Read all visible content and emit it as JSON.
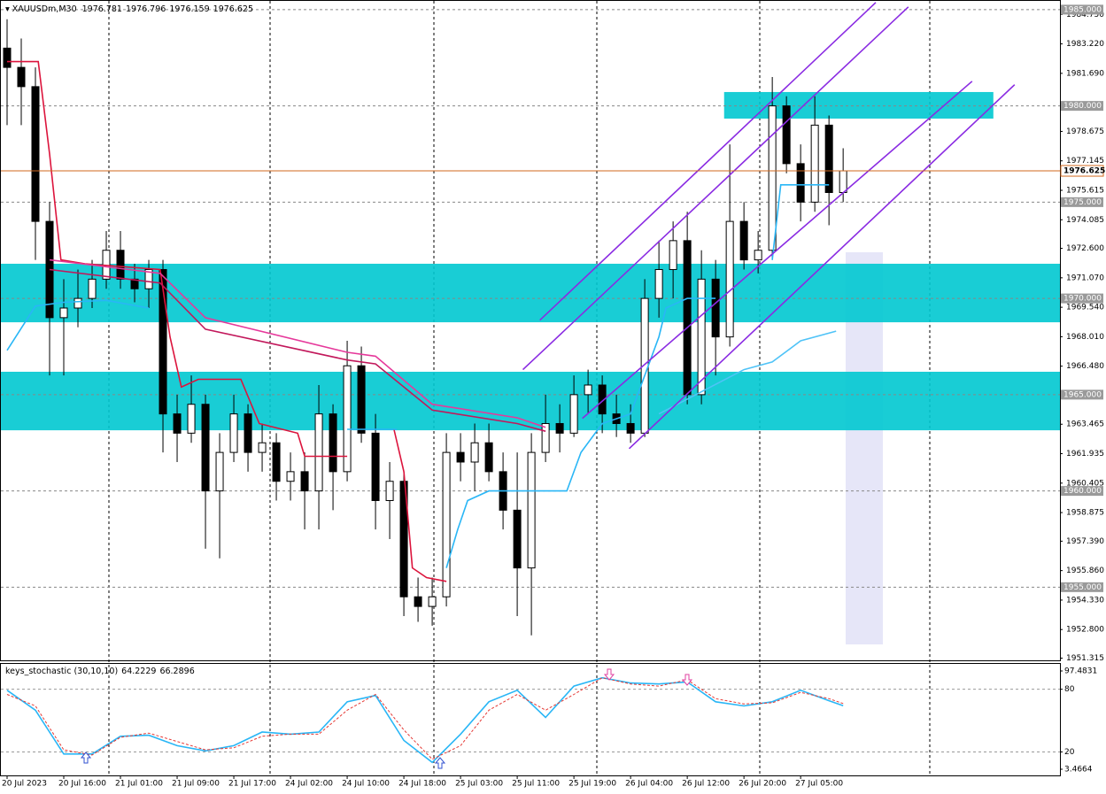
{
  "chart_data": [
    {
      "type": "candlestick",
      "title": "XAUUSDm,M30",
      "ohlc_header": [
        1976.781,
        1976.796,
        1976.159,
        1976.625
      ],
      "open": [
        1983,
        1982,
        1981,
        1974,
        1969,
        1969.5,
        1970,
        1971,
        1972.5,
        1971,
        1970.5,
        1971.5,
        1964,
        1963,
        1964.5,
        1960,
        1962,
        1964,
        1962,
        1962.5,
        1960.5,
        1961,
        1960,
        1964,
        1961,
        1966.5,
        1963,
        1959.5,
        1960.5,
        1954.5,
        1954,
        1954.5,
        1962,
        1961.5,
        1962.5,
        1961,
        1959,
        1956,
        1962,
        1963.5,
        1963,
        1965,
        1965.5,
        1964,
        1963.5,
        1963,
        1970,
        1971.5,
        1973,
        1965,
        1971,
        1968,
        1974,
        1972,
        1972.5,
        1980,
        1977,
        1975,
        1979,
        1975.5
      ],
      "high": [
        1984.5,
        1983.5,
        1982,
        1975,
        1971,
        1971.5,
        1972,
        1973.5,
        1973.5,
        1971.8,
        1972,
        1972,
        1965,
        1966,
        1965,
        1963,
        1965,
        1964.5,
        1963.5,
        1963,
        1962,
        1962,
        1965.5,
        1964.5,
        1967.8,
        1967.5,
        1964,
        1961.5,
        1961,
        1955.5,
        1955.5,
        1963,
        1963,
        1963.5,
        1963.5,
        1962,
        1962,
        1963,
        1965,
        1964.5,
        1966,
        1966.3,
        1966,
        1965,
        1964.5,
        1971,
        1973,
        1974,
        1974.5,
        1972.5,
        1972,
        1978,
        1975,
        1973.5,
        1981.5,
        1980.5,
        1978,
        1980.5,
        1979.5,
        1977.8
      ],
      "low": [
        1979,
        1979,
        1972,
        1966,
        1966,
        1968.5,
        1969.5,
        1970.5,
        1970.5,
        1969.8,
        1969.5,
        1962,
        1961.5,
        1962.5,
        1957,
        1956.5,
        1961.5,
        1961,
        1961,
        1959.5,
        1959.5,
        1958,
        1958,
        1959,
        1960.5,
        1962.5,
        1958,
        1957.5,
        1953.5,
        1953.2,
        1953,
        1954,
        1960.5,
        1960,
        1960.5,
        1958,
        1953.5,
        1952.5,
        1961.5,
        1962,
        1962.8,
        1964,
        1963,
        1962.8,
        1962.5,
        1962.8,
        1969,
        1970,
        1964.5,
        1964.5,
        1966,
        1967.5,
        1971.5,
        1971.3,
        1972,
        1976.5,
        1974,
        1974.5,
        1973.8,
        1975
      ],
      "close": [
        1982,
        1981,
        1974,
        1969,
        1969.5,
        1970,
        1971,
        1972.5,
        1971,
        1970.5,
        1971.5,
        1964,
        1963,
        1964.5,
        1960,
        1962,
        1964,
        1962,
        1962.5,
        1960.5,
        1961,
        1960,
        1964,
        1961,
        1966.5,
        1963,
        1959.5,
        1960.5,
        1954.5,
        1954,
        1954.5,
        1962,
        1961.5,
        1962.5,
        1961,
        1959,
        1956,
        1962,
        1963.5,
        1963,
        1965,
        1965.5,
        1964,
        1963.5,
        1963,
        1970,
        1971.5,
        1973,
        1965,
        1971,
        1968,
        1974,
        1972,
        1972.5,
        1980,
        1977,
        1975,
        1979,
        1975.5,
        1976.625
      ],
      "xlim": [
        -0.5,
        74.3
      ],
      "xticks": [
        {
          "value": 0,
          "label": "20 Jul 2023"
        },
        {
          "value": 4,
          "label": "20 Jul 16:00"
        },
        {
          "value": 8,
          "label": "21 Jul 01:00"
        },
        {
          "value": 12,
          "label": "21 Jul 09:00"
        },
        {
          "value": 16,
          "label": "21 Jul 17:00"
        },
        {
          "value": 20,
          "label": "24 Jul 02:00"
        },
        {
          "value": 24,
          "label": "24 Jul 10:00"
        },
        {
          "value": 28,
          "label": "24 Jul 18:00"
        },
        {
          "value": 32,
          "label": "25 Jul 03:00"
        },
        {
          "value": 36,
          "label": "25 Jul 11:00"
        },
        {
          "value": 40,
          "label": "25 Jul 19:00"
        },
        {
          "value": 44,
          "label": "26 Jul 04:00"
        },
        {
          "value": 48,
          "label": "26 Jul 12:00"
        },
        {
          "value": 52,
          "label": "26 Jul 20:00"
        },
        {
          "value": 56,
          "label": "27 Jul 05:00"
        }
      ],
      "ylim": [
        1951.2,
        1985.5
      ],
      "yticks": [
        {
          "value": 1984.75,
          "label": "1984.750"
        },
        {
          "value": 1983.22,
          "label": "1983.220"
        },
        {
          "value": 1981.69,
          "label": "1981.690"
        },
        {
          "value": 1978.675,
          "label": "1978.675"
        },
        {
          "value": 1977.145,
          "label": "1977.145"
        },
        {
          "value": 1975.615,
          "label": "1975.615"
        },
        {
          "value": 1974.085,
          "label": "1974.085"
        },
        {
          "value": 1972.6,
          "label": "1972.600"
        },
        {
          "value": 1971.07,
          "label": "1971.070"
        },
        {
          "value": 1969.54,
          "label": "1969.540"
        },
        {
          "value": 1968.01,
          "label": "1968.010"
        },
        {
          "value": 1966.48,
          "label": "1966.480"
        },
        {
          "value": 1963.465,
          "label": "1963.465"
        },
        {
          "value": 1961.935,
          "label": "1961.935"
        },
        {
          "value": 1960.405,
          "label": "1960.405"
        },
        {
          "value": 1958.875,
          "label": "1958.875"
        },
        {
          "value": 1957.39,
          "label": "1957.390"
        },
        {
          "value": 1955.86,
          "label": "1955.860"
        },
        {
          "value": 1954.33,
          "label": "1954.330"
        },
        {
          "value": 1952.8,
          "label": "1952.800"
        },
        {
          "value": 1951.315,
          "label": "1951.315"
        }
      ],
      "price_levels": [
        {
          "value": 1985,
          "label": "1985.000"
        },
        {
          "value": 1980,
          "label": "1980.000"
        },
        {
          "value": 1975,
          "label": "1975.000"
        },
        {
          "value": 1970,
          "label": "1970.000"
        },
        {
          "value": 1965,
          "label": "1965.000"
        },
        {
          "value": 1960,
          "label": "1960.000"
        },
        {
          "value": 1955,
          "label": "1955.000"
        }
      ],
      "current_price": 1976.625,
      "zone_color": "#00c8d0",
      "zones": [
        [
          1968.76,
          1971.8
        ],
        [
          1963.15,
          1966.19
        ]
      ],
      "box": {
        "x": [
          50.6,
          69.6
        ],
        "range": [
          1979.34,
          1980.72
        ]
      },
      "series": [
        {
          "color": "#dc143c",
          "x": [
            0,
            2.2,
            3,
            3.8,
            5.5,
            10.8,
            11.5,
            12.3,
            13.5,
            16.5,
            17.8,
            20.5,
            21,
            24,
            null,
            27.3,
            28,
            28.6,
            29.6,
            31
          ],
          "values": [
            1982.3,
            1982.3,
            1977.5,
            1972,
            1971.8,
            1971.5,
            1968,
            1965.4,
            1965.8,
            1965.8,
            1963.5,
            1963,
            1961.8,
            1961.8,
            null,
            1963.2,
            1961,
            1956,
            1955.5,
            1955.3
          ]
        },
        {
          "color": "#29b6f6",
          "x": [
            0,
            2,
            4,
            7,
            10,
            null,
            24,
            27.5,
            null,
            31,
            31.8,
            32.5,
            34,
            39.5,
            40.5,
            42,
            44,
            46,
            46.5,
            48,
            50,
            null,
            54,
            54.6,
            55,
            58
          ],
          "values": [
            1967.3,
            1969.6,
            1969.8,
            1969.9,
            1969.5,
            null,
            1963.2,
            1963.2,
            null,
            1956,
            1958,
            1959.5,
            1960,
            1960,
            1962,
            1963.5,
            1964,
            1968,
            1969.5,
            1970,
            1970,
            null,
            1972,
            1975.9,
            1975.9,
            1975.9
          ]
        },
        {
          "color": "#e6399b",
          "x": [
            3,
            10.8,
            14,
            24,
            26,
            30,
            36,
            38
          ],
          "values": [
            1972,
            1971.3,
            1969,
            1967.2,
            1967,
            1964.5,
            1963.8,
            1963.3
          ]
        },
        {
          "color": "#c2185b",
          "x": [
            3,
            10.8,
            14,
            24,
            26,
            30,
            36,
            38
          ],
          "values": [
            1971.5,
            1970.8,
            1968.4,
            1966.8,
            1966.6,
            1964.2,
            1963.5,
            1963.1
          ]
        },
        {
          "color": "#4fc3f7",
          "x": [
            46,
            52,
            54,
            56,
            58.5
          ],
          "values": [
            1964,
            1966.3,
            1966.7,
            1967.8,
            1968.3
          ]
        },
        {
          "color": "#8a2be2",
          "x": [
            37.6,
            61.3
          ],
          "values": [
            1968.87,
            1985.37
          ]
        },
        {
          "color": "#8a2be2",
          "x": [
            36.4,
            63.6
          ],
          "values": [
            1966.3,
            1985.14
          ]
        },
        {
          "color": "#8a2be2",
          "x": [
            43.9,
            71.1
          ],
          "values": [
            1962.2,
            1981.1
          ]
        },
        {
          "color": "#8a2be2",
          "x": [
            40.6,
            68.1
          ],
          "values": [
            1963.77,
            1981.28
          ]
        }
      ]
    },
    {
      "type": "line",
      "title": "keys_stochastic (30,10,10)",
      "x": [
        0,
        2,
        4,
        6,
        8,
        10,
        12,
        14,
        16,
        18,
        20,
        22,
        24,
        26,
        28,
        30,
        32,
        34,
        36,
        38,
        40,
        42,
        44,
        46,
        48,
        50,
        52,
        54,
        56,
        58,
        59
      ],
      "series": [
        {
          "color": "#29b6f6",
          "values": [
            79,
            60,
            18,
            18,
            35,
            36,
            26,
            21,
            26,
            39,
            37,
            39,
            68,
            74,
            31,
            10,
            37,
            68,
            79,
            53,
            83,
            91,
            86,
            85,
            87,
            68,
            64,
            68,
            79,
            69,
            64.2229
          ]
        },
        {
          "color": "#e53935",
          "dash": true,
          "values": [
            75,
            64,
            22,
            17,
            34,
            38,
            30,
            22,
            24,
            35,
            37,
            37,
            60,
            75,
            41,
            13,
            26,
            60,
            75,
            60,
            75,
            91,
            85,
            83,
            89,
            71,
            66,
            67,
            77,
            71,
            66.2896
          ]
        }
      ],
      "ylim": [
        3.4664,
        97.4831
      ],
      "yticks": [
        97.4831,
        80,
        20,
        3.4664
      ],
      "levels": [
        80,
        20
      ]
    }
  ]
}
